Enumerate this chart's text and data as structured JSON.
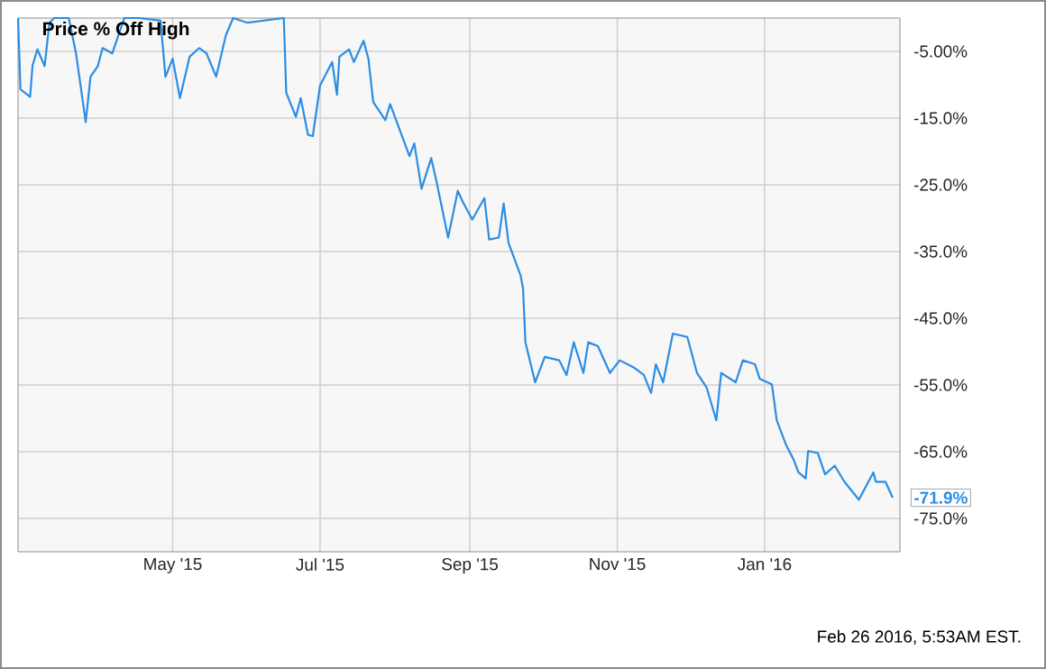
{
  "chart_data": {
    "type": "line",
    "title": "Price % Off High",
    "x": [
      "2015-02-26",
      "2015-02-27",
      "2015-03-03",
      "2015-03-04",
      "2015-03-06",
      "2015-03-09",
      "2015-03-11",
      "2015-03-13",
      "2015-03-19",
      "2015-03-22",
      "2015-03-26",
      "2015-03-28",
      "2015-03-31",
      "2015-04-02",
      "2015-04-06",
      "2015-04-11",
      "2015-04-17",
      "2015-04-26",
      "2015-04-28",
      "2015-05-01",
      "2015-05-04",
      "2015-05-08",
      "2015-05-12",
      "2015-05-15",
      "2015-05-19",
      "2015-05-23",
      "2015-05-26",
      "2015-06-01",
      "2015-06-16",
      "2015-06-17",
      "2015-06-21",
      "2015-06-23",
      "2015-06-26",
      "2015-06-28",
      "2015-07-01",
      "2015-07-06",
      "2015-07-08",
      "2015-07-09",
      "2015-07-13",
      "2015-07-15",
      "2015-07-19",
      "2015-07-21",
      "2015-07-23",
      "2015-07-28",
      "2015-07-30",
      "2015-08-07",
      "2015-08-09",
      "2015-08-12",
      "2015-08-16",
      "2015-08-18",
      "2015-08-23",
      "2015-08-27",
      "2015-08-29",
      "2015-09-02",
      "2015-09-07",
      "2015-09-09",
      "2015-09-13",
      "2015-09-15",
      "2015-09-17",
      "2015-09-22",
      "2015-09-23",
      "2015-09-24",
      "2015-09-28",
      "2015-10-02",
      "2015-10-08",
      "2015-10-11",
      "2015-10-14",
      "2015-10-18",
      "2015-10-20",
      "2015-10-24",
      "2015-10-29",
      "2015-11-02",
      "2015-11-08",
      "2015-11-12",
      "2015-11-15",
      "2015-11-17",
      "2015-11-20",
      "2015-11-24",
      "2015-11-30",
      "2015-12-04",
      "2015-12-08",
      "2015-12-12",
      "2015-12-14",
      "2015-12-20",
      "2015-12-23",
      "2015-12-28",
      "2015-12-30",
      "2016-01-04",
      "2016-01-06",
      "2016-01-10",
      "2016-01-13",
      "2016-01-15",
      "2016-01-18",
      "2016-01-19",
      "2016-01-23",
      "2016-01-26",
      "2016-01-30",
      "2016-02-03",
      "2016-02-09",
      "2016-02-15",
      "2016-02-16",
      "2016-02-20",
      "2016-02-23"
    ],
    "series": [
      {
        "color": "#2b8de3",
        "values": [
          0,
          -10.7,
          -11.8,
          -7.1,
          -4.7,
          -7.2,
          -0.7,
          0,
          0,
          -5.3,
          -15.6,
          -8.8,
          -7.2,
          -4.5,
          -5.3,
          0,
          0,
          -0.4,
          -8.8,
          -6.1,
          -12.0,
          -5.8,
          -4.5,
          -5.3,
          -8.8,
          -2.6,
          0,
          -0.7,
          0,
          -11.2,
          -14.8,
          -12.0,
          -17.5,
          -17.7,
          -10.1,
          -6.6,
          -11.5,
          -5.8,
          -4.7,
          -6.6,
          -3.4,
          -6.1,
          -12.6,
          -15.3,
          -12.9,
          -20.7,
          -18.8,
          -25.6,
          -21.0,
          -24.2,
          -32.9,
          -25.9,
          -27.5,
          -30.2,
          -27.0,
          -33.2,
          -32.9,
          -27.8,
          -33.7,
          -38.6,
          -40.5,
          -48.6,
          -54.6,
          -50.8,
          -51.3,
          -53.5,
          -48.6,
          -53.2,
          -48.6,
          -49.2,
          -53.2,
          -51.3,
          -52.4,
          -53.5,
          -56.2,
          -51.9,
          -54.6,
          -47.3,
          -47.8,
          -53.2,
          -55.4,
          -60.3,
          -53.2,
          -54.6,
          -51.3,
          -51.9,
          -54.1,
          -54.9,
          -60.3,
          -64.1,
          -66.2,
          -68.1,
          -69.0,
          -64.9,
          -65.2,
          -68.4,
          -67.1,
          -69.5,
          -72.2,
          -68.1,
          -69.5,
          -69.5,
          -71.9
        ]
      }
    ],
    "xlim": [
      "2015-02-26",
      "2016-02-26"
    ],
    "xticks": [
      {
        "value": "2015-05-01",
        "label": "May '15"
      },
      {
        "value": "2015-07-01",
        "label": "Jul '15"
      },
      {
        "value": "2015-09-01",
        "label": "Sep '15"
      },
      {
        "value": "2015-11-01",
        "label": "Nov '15"
      },
      {
        "value": "2016-01-01",
        "label": "Jan '16"
      }
    ],
    "ylim": [
      -80,
      0
    ],
    "yticks": [
      {
        "value": -5,
        "label": "-5.00%"
      },
      {
        "value": -15,
        "label": "-15.0%"
      },
      {
        "value": -25,
        "label": "-25.0%"
      },
      {
        "value": -35,
        "label": "-35.0%"
      },
      {
        "value": -45,
        "label": "-45.0%"
      },
      {
        "value": -55,
        "label": "-55.0%"
      },
      {
        "value": -65,
        "label": "-65.0%"
      },
      {
        "value": -75,
        "label": "-75.0%"
      }
    ],
    "grid": true,
    "annotations": [
      {
        "text": "-71.9%",
        "x": "2016-02-23",
        "y": -71.9
      },
      "Feb 26 2016, 5:53AM EST."
    ]
  }
}
